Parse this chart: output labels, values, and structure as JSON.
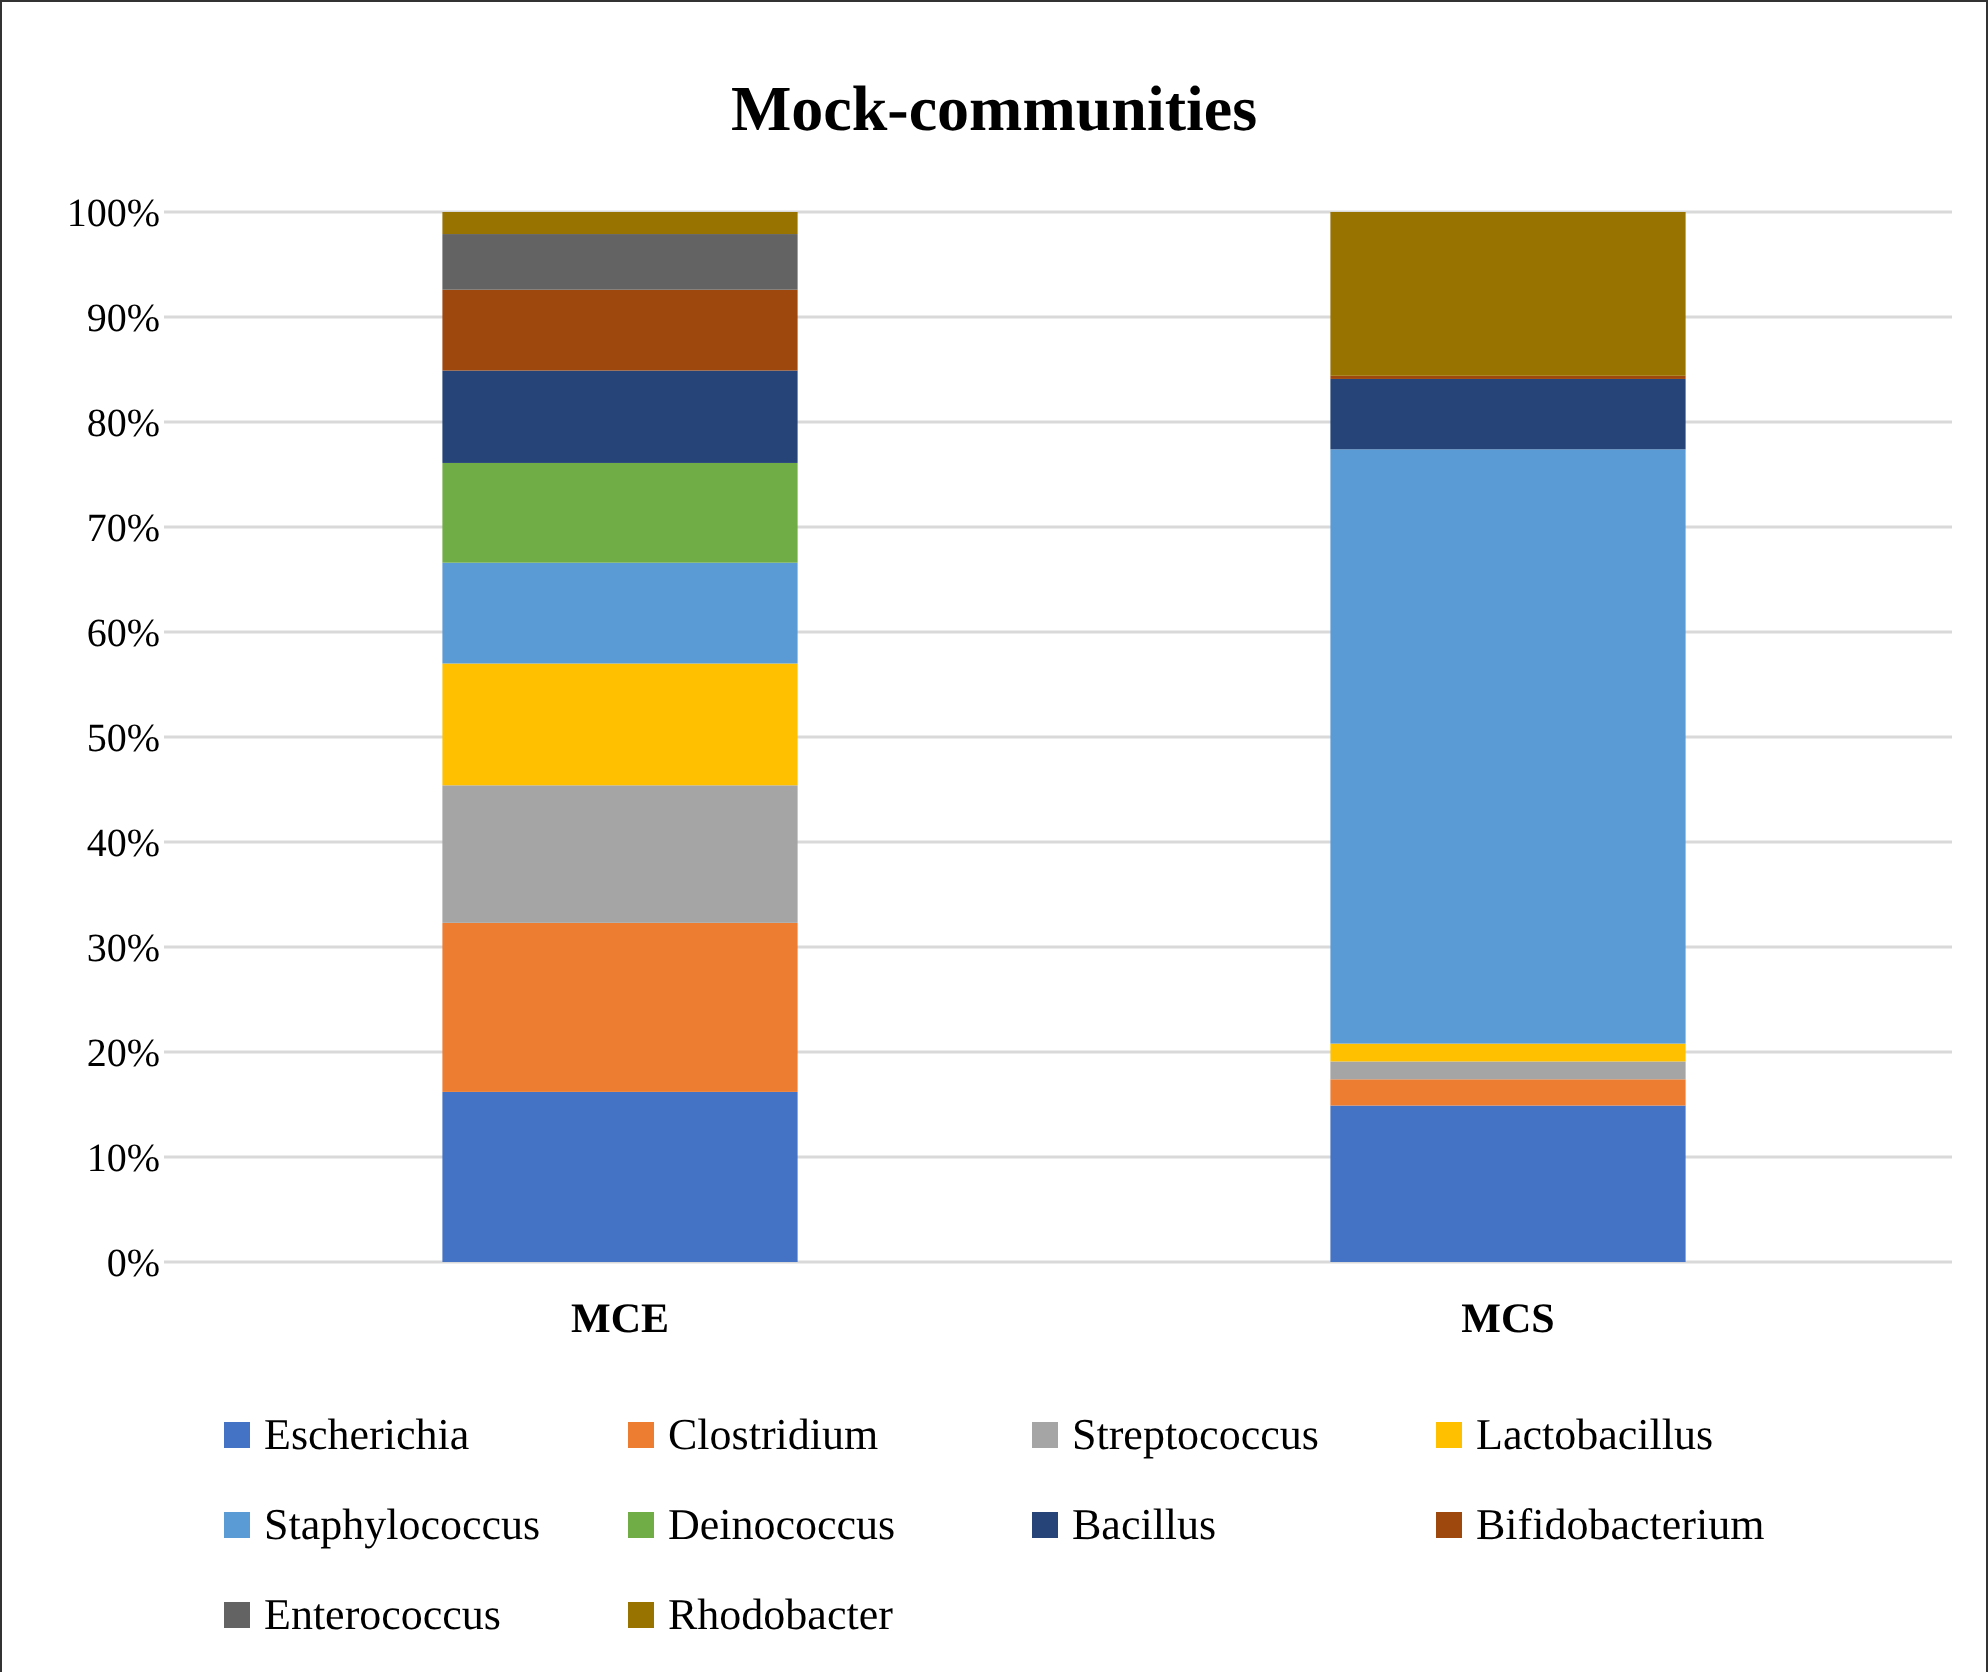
{
  "chart_data": {
    "type": "bar",
    "title": "Mock-communities",
    "categories": [
      "MCE",
      "MCS"
    ],
    "stacked": true,
    "ylim": [
      0,
      100
    ],
    "yticks": [
      {
        "value": 0,
        "label": "0%"
      },
      {
        "value": 10,
        "label": "10%"
      },
      {
        "value": 20,
        "label": "20%"
      },
      {
        "value": 30,
        "label": "30%"
      },
      {
        "value": 40,
        "label": "40%"
      },
      {
        "value": 50,
        "label": "50%"
      },
      {
        "value": 60,
        "label": "60%"
      },
      {
        "value": 70,
        "label": "70%"
      },
      {
        "value": 80,
        "label": "80%"
      },
      {
        "value": 90,
        "label": "90%"
      },
      {
        "value": 100,
        "label": "100%"
      }
    ],
    "grid": "y",
    "legend": "bottom",
    "series": [
      {
        "name": "Escherichia",
        "color": "#4472c4",
        "values": [
          16.2,
          14.9
        ]
      },
      {
        "name": "Clostridium",
        "color": "#ed7d31",
        "values": [
          16.1,
          2.5
        ]
      },
      {
        "name": "Streptococcus",
        "color": "#a5a5a5",
        "values": [
          13.1,
          1.7
        ]
      },
      {
        "name": "Lactobacillus",
        "color": "#ffc000",
        "values": [
          11.6,
          1.7
        ]
      },
      {
        "name": "Staphylococcus",
        "color": "#5b9bd5",
        "values": [
          9.6,
          56.6
        ]
      },
      {
        "name": "Deinococcus",
        "color": "#70ad47",
        "values": [
          9.5,
          0
        ]
      },
      {
        "name": "Bacillus",
        "color": "#264478",
        "values": [
          8.8,
          6.7
        ]
      },
      {
        "name": "Bifidobacterium",
        "color": "#9e480e",
        "values": [
          7.7,
          0.3
        ]
      },
      {
        "name": "Enterococcus",
        "color": "#636363",
        "values": [
          5.3,
          0
        ]
      },
      {
        "name": "Rhodobacter",
        "color": "#997300",
        "values": [
          2.1,
          15.6
        ]
      }
    ]
  }
}
